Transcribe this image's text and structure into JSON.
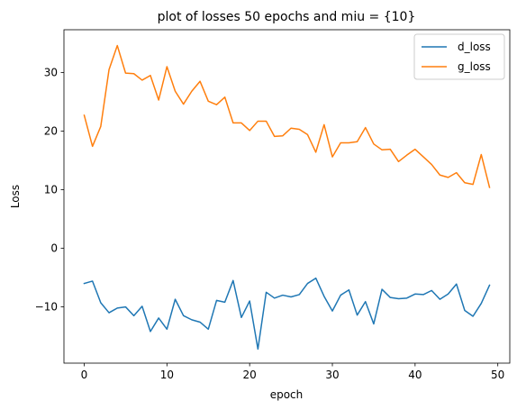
{
  "chart_data": {
    "type": "line",
    "title": "plot of losses 50 epochs and miu = {10}",
    "xlabel": "epoch",
    "ylabel": "Loss",
    "xlim": [
      -2.45,
      51.45
    ],
    "ylim": [
      -19.6,
      37.3
    ],
    "xticks": [
      0,
      10,
      20,
      30,
      40,
      50
    ],
    "yticks": [
      -10,
      0,
      10,
      20,
      30
    ],
    "grid": false,
    "legend_position": "top-right",
    "x": [
      0,
      1,
      2,
      3,
      4,
      5,
      6,
      7,
      8,
      9,
      10,
      11,
      12,
      13,
      14,
      15,
      16,
      17,
      18,
      19,
      20,
      21,
      22,
      23,
      24,
      25,
      26,
      27,
      28,
      29,
      30,
      31,
      32,
      33,
      34,
      35,
      36,
      37,
      38,
      39,
      40,
      41,
      42,
      43,
      44,
      45,
      46,
      47,
      48,
      49
    ],
    "series": [
      {
        "name": "d_loss",
        "color": "#1f77b4",
        "values": [
          -6.0,
          -5.6,
          -9.3,
          -11.0,
          -10.2,
          -10.0,
          -11.5,
          -9.9,
          -14.2,
          -11.9,
          -13.8,
          -8.7,
          -11.5,
          -12.2,
          -12.6,
          -13.8,
          -8.9,
          -9.2,
          -5.5,
          -11.8,
          -9.0,
          -17.2,
          -7.5,
          -8.5,
          -8.0,
          -8.3,
          -7.9,
          -6.0,
          -5.1,
          -8.2,
          -10.7,
          -8.0,
          -7.1,
          -11.4,
          -9.1,
          -12.9,
          -7.0,
          -8.4,
          -8.6,
          -8.5,
          -7.8,
          -7.9,
          -7.2,
          -8.7,
          -7.8,
          -6.1,
          -10.6,
          -11.6,
          -9.4,
          -6.3
        ]
      },
      {
        "name": "g_loss",
        "color": "#ff7f0e",
        "values": [
          22.7,
          17.4,
          20.8,
          30.5,
          34.6,
          29.9,
          29.8,
          28.7,
          29.5,
          25.3,
          31.0,
          26.8,
          24.6,
          26.8,
          28.5,
          25.1,
          24.5,
          25.8,
          21.4,
          21.4,
          20.1,
          21.7,
          21.7,
          19.1,
          19.2,
          20.5,
          20.3,
          19.4,
          16.4,
          21.1,
          15.6,
          18.0,
          18.0,
          18.2,
          20.6,
          17.8,
          16.8,
          16.9,
          14.8,
          15.9,
          16.9,
          15.6,
          14.3,
          12.5,
          12.1,
          12.9,
          11.2,
          10.9,
          16.0,
          10.4
        ]
      }
    ]
  }
}
